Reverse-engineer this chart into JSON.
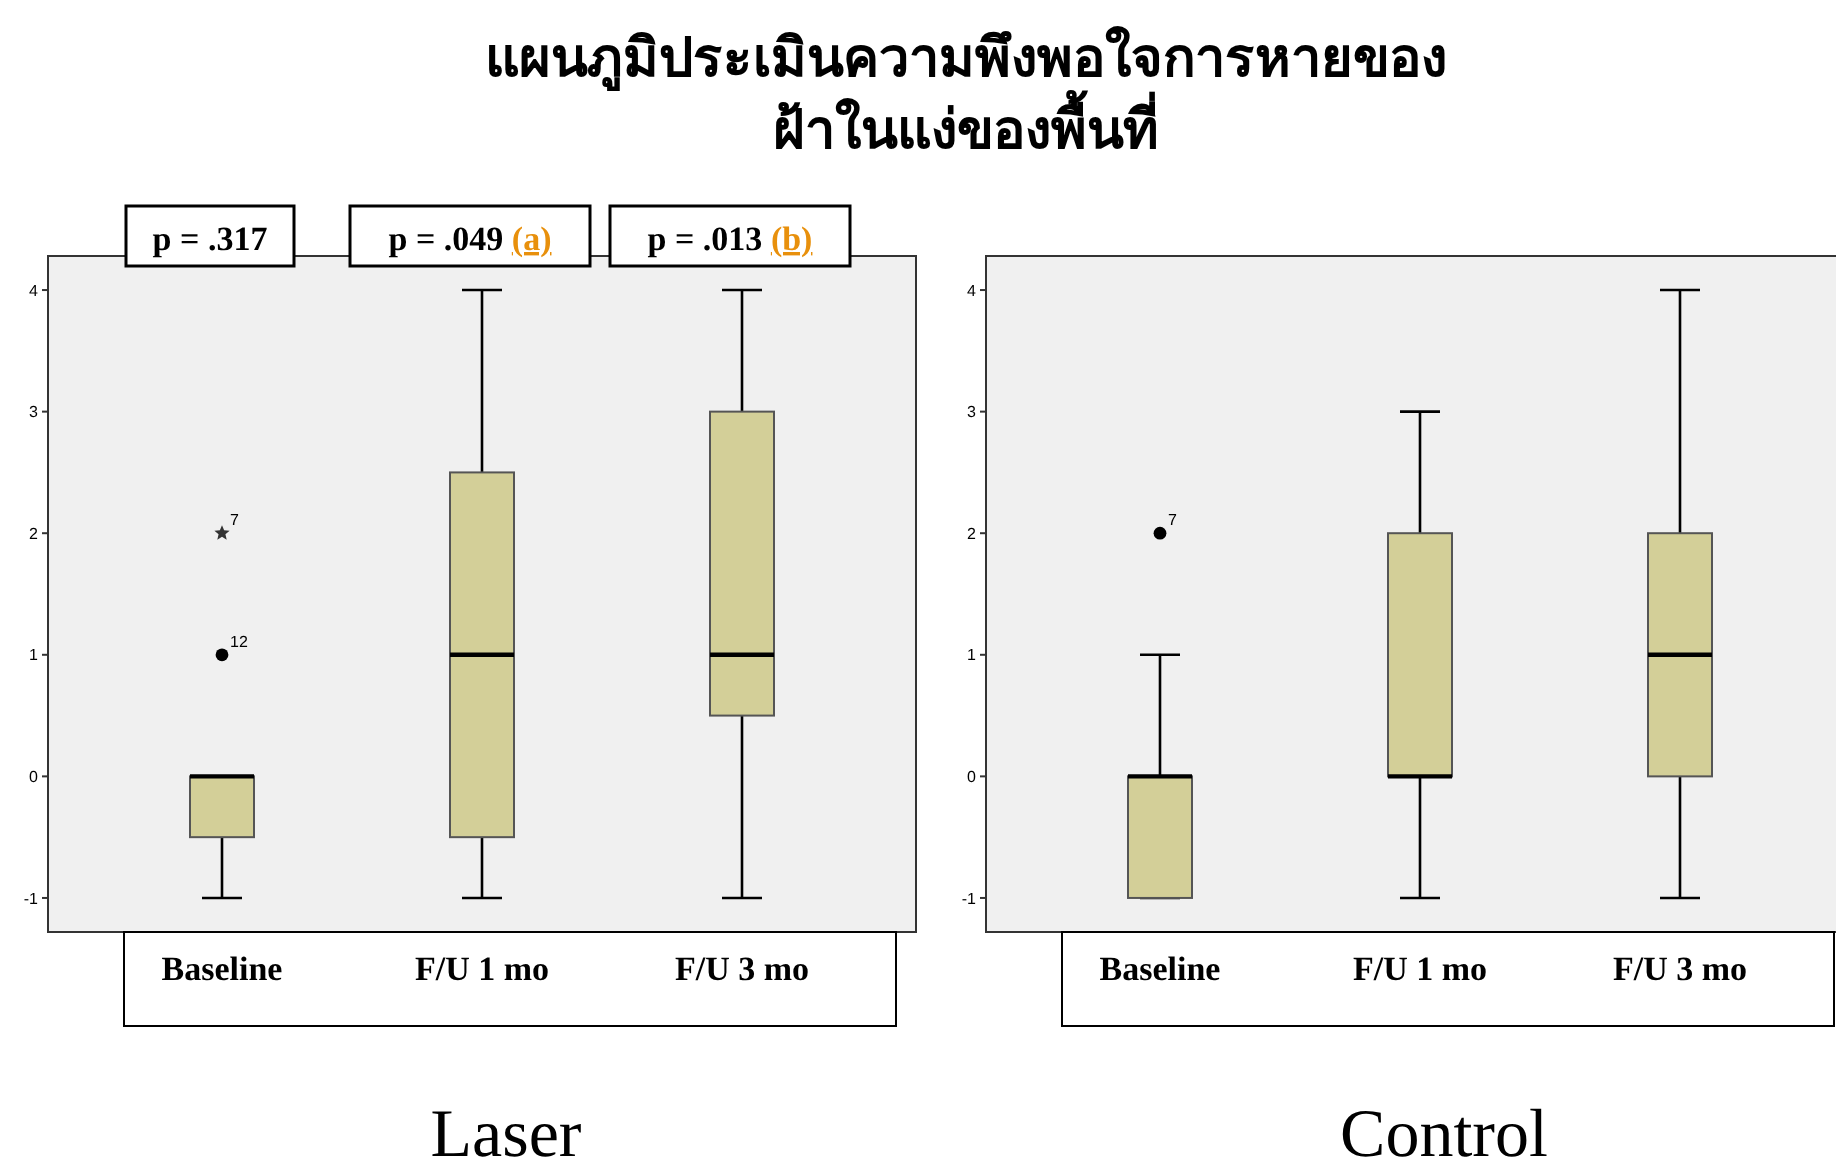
{
  "chart_data": [
    {
      "type": "box",
      "title": "แผนภูมิประเมินความพึงพอใจการหายของ\nฝ้าในแง่ของพื้นที่",
      "xlabel": "Laser",
      "categories": [
        "Baseline",
        "F/U 1 mo",
        "F/U 3 mo"
      ],
      "ylim": [
        -1.28,
        4.28
      ],
      "yticks": [
        -1,
        0,
        1,
        2,
        3,
        4
      ],
      "grid": false,
      "series": [
        {
          "color": "#d3cf98",
          "boxes": [
            {
              "low": -1,
              "q1": -0.5,
              "median": 0,
              "q3": 0,
              "high": 0
            },
            {
              "low": -1,
              "q1": -0.5,
              "median": 1,
              "q3": 2.5,
              "high": 4
            },
            {
              "low": -1,
              "q1": 0.5,
              "median": 1,
              "q3": 3,
              "high": 4
            }
          ]
        },
        {
          "type": "scatter",
          "x": [
            "Baseline"
          ],
          "values": [
            2
          ],
          "marker": "star",
          "color": "#333333"
        },
        {
          "type": "scatter",
          "x": [
            "Baseline"
          ],
          "values": [
            1
          ],
          "marker": "circle",
          "color": "#000000"
        }
      ],
      "annotations": [
        "p = .317",
        "p = .049 (a)",
        "p = .013 (b)",
        {
          "text": "7",
          "x": "Baseline",
          "y": 2
        },
        {
          "text": "12",
          "x": "Baseline",
          "y": 1
        }
      ]
    },
    {
      "type": "box",
      "xlabel": "Control",
      "categories": [
        "Baseline",
        "F/U 1 mo",
        "F/U 3 mo"
      ],
      "ylim": [
        -1.28,
        4.28
      ],
      "yticks": [
        -1,
        0,
        1,
        2,
        3,
        4
      ],
      "grid": false,
      "series": [
        {
          "color": "#d3cf98",
          "boxes": [
            {
              "low": -1,
              "q1": -1,
              "median": 0,
              "q3": 0,
              "high": 1
            },
            {
              "low": -1,
              "q1": 0,
              "median": 0,
              "q3": 2,
              "high": 3
            },
            {
              "low": -1,
              "q1": 0,
              "median": 1,
              "q3": 2,
              "high": 4
            }
          ]
        },
        {
          "type": "scatter",
          "x": [
            "Baseline"
          ],
          "values": [
            2
          ],
          "marker": "circle",
          "color": "#000000"
        }
      ],
      "annotations": [
        {
          "text": "7",
          "x": "Baseline",
          "y": 2
        }
      ]
    }
  ]
}
